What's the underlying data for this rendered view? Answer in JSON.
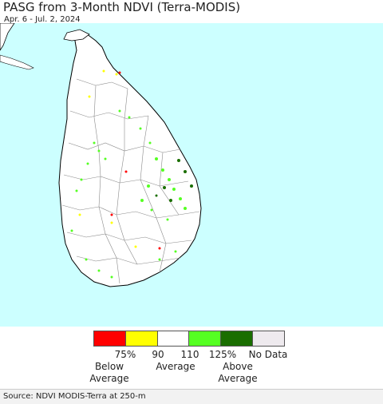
{
  "header": {
    "title": "PASG from 3-Month NDVI (Terra-MODIS)",
    "date_range": "Apr. 6 - Jul. 2, 2024"
  },
  "legend": {
    "swatches": [
      {
        "color": "#ff0000"
      },
      {
        "color": "#ffff00"
      },
      {
        "color": "#ffffff"
      },
      {
        "color": "#55ff22"
      },
      {
        "color": "#1a6e00"
      },
      {
        "color": "#eeeaee"
      }
    ],
    "ticks": [
      "75%",
      "90",
      "110",
      "125%",
      "No Data"
    ],
    "categories": [
      {
        "line1": "Below",
        "line2": "Average"
      },
      {
        "line1": "Average",
        "line2": ""
      },
      {
        "line1": "Above",
        "line2": "Average"
      }
    ]
  },
  "colors": {
    "ocean": "#ccffff",
    "land": "#ffffff",
    "boundary": "#777777",
    "coast": "#000000"
  },
  "footer": {
    "source": "Source: NDVI MODIS-Terra at 250-m"
  }
}
